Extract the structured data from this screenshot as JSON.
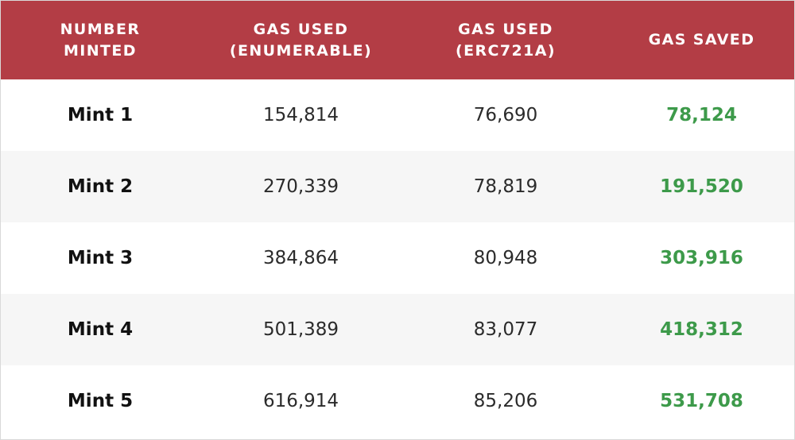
{
  "colors": {
    "header_bg": "#b33d45",
    "header_text": "#ffffff",
    "saved_text": "#3d9a4a",
    "row_alt_bg": "#f6f6f6"
  },
  "header": {
    "col1": [
      "NUMBER",
      "MINTED"
    ],
    "col2": [
      "GAS USED",
      "(ENUMERABLE)"
    ],
    "col3": [
      "GAS USED",
      "(ERC721A)"
    ],
    "col4": [
      "GAS SAVED"
    ]
  },
  "rows": [
    {
      "label": "Mint 1",
      "enumerable": "154,814",
      "erc721a": "76,690",
      "saved": "78,124"
    },
    {
      "label": "Mint 2",
      "enumerable": "270,339",
      "erc721a": "78,819",
      "saved": "191,520"
    },
    {
      "label": "Mint 3",
      "enumerable": "384,864",
      "erc721a": "80,948",
      "saved": "303,916"
    },
    {
      "label": "Mint 4",
      "enumerable": "501,389",
      "erc721a": "83,077",
      "saved": "418,312"
    },
    {
      "label": "Mint 5",
      "enumerable": "616,914",
      "erc721a": "85,206",
      "saved": "531,708"
    }
  ]
}
